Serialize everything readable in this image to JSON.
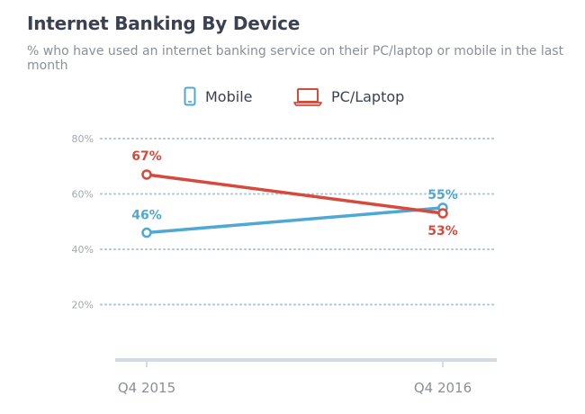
{
  "chart_data": {
    "type": "line",
    "title": "Internet Banking By Device",
    "subtitle": "% who have used an internet banking service on their PC/laptop or mobile in the last month",
    "categories": [
      "Q4 2015",
      "Q4 2016"
    ],
    "series": [
      {
        "name": "Mobile",
        "values": [
          46,
          55
        ],
        "labels": [
          "46%",
          "55%"
        ],
        "color": "#4ea8d4"
      },
      {
        "name": "PC/Laptop",
        "values": [
          67,
          53
        ],
        "labels": [
          "67%",
          "53%"
        ],
        "color": "#d64a3b"
      }
    ],
    "yticks": [
      20,
      40,
      60,
      80
    ],
    "ytick_labels": [
      "20%",
      "40%",
      "60%",
      "80%"
    ],
    "ylim": [
      0,
      80
    ],
    "grid": true,
    "legend": "top-center"
  },
  "legend": {
    "mobile_icon": "mobile-phone-icon",
    "laptop_icon": "laptop-icon"
  },
  "colors": {
    "grid": "#a9c4dc",
    "axis": "#d3dbe5",
    "tick_text": "#a3a8b0",
    "category_text": "#8a8f99"
  }
}
